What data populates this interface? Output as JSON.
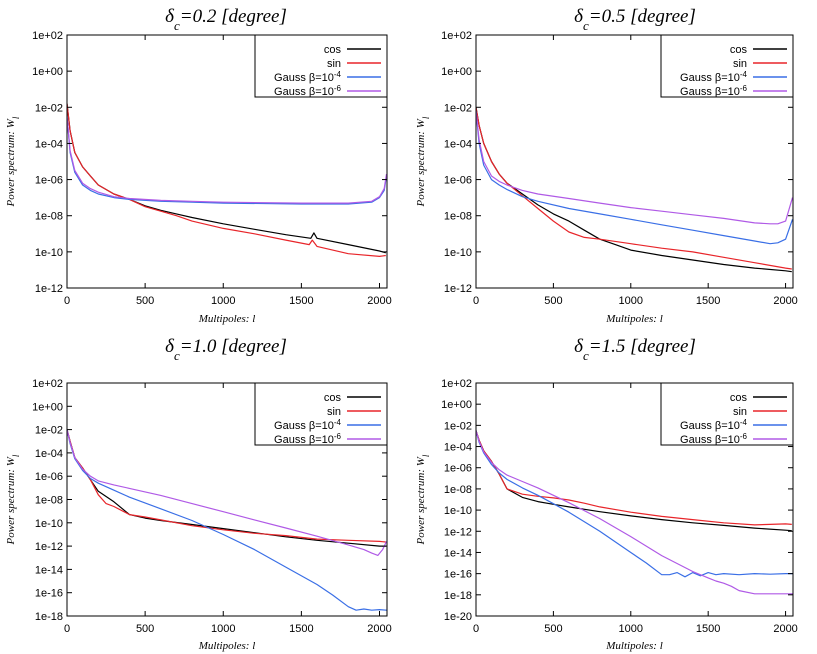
{
  "chart_data": [
    {
      "type": "line",
      "title_sym": "δ",
      "title_sub": "c",
      "title_rest": "=0.2 [degree]",
      "xlabel": "Multipoles: l",
      "ylabel": "Power spectrum: W",
      "ylabel_sub": "l",
      "xlim": [
        0,
        2048
      ],
      "ylim_exp": [
        -12,
        2
      ],
      "x_ticks": [
        "0",
        "500",
        "1000",
        "1500",
        "2000"
      ],
      "y_ticks": [
        "1e-12",
        "1e-10",
        "1e-08",
        "1e-06",
        "1e-04",
        "1e-02",
        "1e+00",
        "1e+02"
      ],
      "series": [
        {
          "name": "cos",
          "color": "#000000",
          "x": [
            0,
            20,
            50,
            100,
            150,
            200,
            300,
            400,
            500,
            600,
            700,
            800,
            1000,
            1200,
            1400,
            1560,
            1580,
            1600,
            1800,
            2000,
            2040
          ],
          "log10y": [
            -1.8,
            -3.3,
            -4.5,
            -5.3,
            -5.8,
            -6.3,
            -6.8,
            -7.1,
            -7.45,
            -7.7,
            -7.9,
            -8.1,
            -8.45,
            -8.75,
            -9.05,
            -9.25,
            -8.95,
            -9.25,
            -9.6,
            -9.95,
            -10.05
          ]
        },
        {
          "name": "sin",
          "color": "#e8252a",
          "x": [
            0,
            20,
            50,
            100,
            150,
            200,
            300,
            400,
            500,
            600,
            700,
            800,
            1000,
            1200,
            1400,
            1550,
            1570,
            1600,
            1800,
            2000,
            2040
          ],
          "log10y": [
            -1.8,
            -3.3,
            -4.5,
            -5.3,
            -5.8,
            -6.3,
            -6.8,
            -7.1,
            -7.5,
            -7.75,
            -8.0,
            -8.3,
            -8.7,
            -9.0,
            -9.35,
            -9.6,
            -9.35,
            -9.7,
            -10.1,
            -10.25,
            -10.2
          ]
        },
        {
          "name": "Gauss β=10",
          "sup": "-4",
          "color": "#3a6fe6",
          "x": [
            0,
            20,
            50,
            100,
            150,
            200,
            300,
            400,
            600,
            800,
            1000,
            1500,
            1800,
            1950,
            2000,
            2030,
            2045
          ],
          "log10y": [
            -2.5,
            -4.5,
            -5.6,
            -6.3,
            -6.6,
            -6.8,
            -7.0,
            -7.1,
            -7.2,
            -7.25,
            -7.3,
            -7.35,
            -7.35,
            -7.25,
            -7.0,
            -6.6,
            -5.8
          ]
        },
        {
          "name": "Gauss β=10",
          "sup": "-6",
          "color": "#b05ae6",
          "x": [
            0,
            20,
            50,
            100,
            150,
            200,
            300,
            400,
            600,
            800,
            1000,
            1500,
            1800,
            1950,
            2000,
            2030,
            2045
          ],
          "log10y": [
            -2.5,
            -4.4,
            -5.5,
            -6.2,
            -6.5,
            -6.7,
            -6.95,
            -7.05,
            -7.15,
            -7.2,
            -7.25,
            -7.3,
            -7.3,
            -7.2,
            -6.95,
            -6.5,
            -5.7
          ]
        }
      ]
    },
    {
      "type": "line",
      "title_sym": "δ",
      "title_sub": "c",
      "title_rest": "=0.5 [degree]",
      "xlabel": "Multipoles: l",
      "ylabel": "Power spectrum: W",
      "ylabel_sub": "l",
      "xlim": [
        0,
        2048
      ],
      "ylim_exp": [
        -12,
        2
      ],
      "x_ticks": [
        "0",
        "500",
        "1000",
        "1500",
        "2000"
      ],
      "y_ticks": [
        "1e-12",
        "1e-10",
        "1e-08",
        "1e-06",
        "1e-04",
        "1e-02",
        "1e+00",
        "1e+02"
      ],
      "series": [
        {
          "name": "cos",
          "color": "#000000",
          "x": [
            0,
            20,
            50,
            100,
            150,
            200,
            300,
            400,
            500,
            600,
            700,
            800,
            900,
            1000,
            1200,
            1400,
            1600,
            1800,
            2000,
            2040
          ],
          "log10y": [
            -2.0,
            -3.0,
            -4.0,
            -5.0,
            -5.7,
            -6.2,
            -6.8,
            -7.4,
            -7.9,
            -8.3,
            -8.8,
            -9.3,
            -9.6,
            -9.9,
            -10.2,
            -10.45,
            -10.7,
            -10.9,
            -11.05,
            -11.1
          ]
        },
        {
          "name": "sin",
          "color": "#e8252a",
          "x": [
            0,
            20,
            50,
            100,
            150,
            200,
            300,
            400,
            500,
            600,
            700,
            800,
            1000,
            1200,
            1400,
            1600,
            1800,
            2000,
            2040
          ],
          "log10y": [
            -2.0,
            -3.0,
            -4.0,
            -5.0,
            -5.7,
            -6.2,
            -6.9,
            -7.6,
            -8.3,
            -8.9,
            -9.2,
            -9.3,
            -9.55,
            -9.8,
            -10.0,
            -10.3,
            -10.6,
            -10.9,
            -10.95
          ]
        },
        {
          "name": "Gauss β=10",
          "sup": "-4",
          "color": "#3a6fe6",
          "x": [
            0,
            20,
            50,
            100,
            150,
            200,
            300,
            400,
            600,
            800,
            1000,
            1200,
            1400,
            1600,
            1800,
            1900,
            1950,
            2000,
            2045
          ],
          "log10y": [
            -2.2,
            -4.0,
            -5.2,
            -6.0,
            -6.3,
            -6.55,
            -6.95,
            -7.2,
            -7.6,
            -7.9,
            -8.2,
            -8.5,
            -8.8,
            -9.1,
            -9.4,
            -9.55,
            -9.5,
            -9.3,
            -8.2
          ]
        },
        {
          "name": "Gauss β=10",
          "sup": "-6",
          "color": "#b05ae6",
          "x": [
            0,
            20,
            50,
            100,
            150,
            200,
            300,
            400,
            600,
            800,
            1000,
            1200,
            1400,
            1600,
            1800,
            1900,
            1950,
            2000,
            2045
          ],
          "log10y": [
            -2.2,
            -3.8,
            -5.0,
            -5.8,
            -6.1,
            -6.3,
            -6.6,
            -6.8,
            -7.05,
            -7.3,
            -7.55,
            -7.75,
            -7.95,
            -8.15,
            -8.4,
            -8.45,
            -8.45,
            -8.3,
            -7.0
          ]
        }
      ]
    },
    {
      "type": "line",
      "title_sym": "δ",
      "title_sub": "c",
      "title_rest": "=1.0 [degree]",
      "xlabel": "Multipoles: l",
      "ylabel": "Power spectrum: W",
      "ylabel_sub": "l",
      "xlim": [
        0,
        2048
      ],
      "ylim_exp": [
        -18,
        2
      ],
      "x_ticks": [
        "0",
        "500",
        "1000",
        "1500",
        "2000"
      ],
      "y_ticks": [
        "1e-18",
        "1e-16",
        "1e-14",
        "1e-12",
        "1e-10",
        "1e-08",
        "1e-06",
        "1e-04",
        "1e-02",
        "1e+00",
        "1e+02"
      ],
      "series": [
        {
          "name": "cos",
          "color": "#000000",
          "x": [
            0,
            20,
            50,
            100,
            150,
            200,
            300,
            400,
            500,
            600,
            800,
            1000,
            1200,
            1400,
            1600,
            1800,
            2000,
            2040
          ],
          "log10y": [
            -2.0,
            -3.0,
            -4.4,
            -5.3,
            -6.3,
            -7.3,
            -8.2,
            -9.3,
            -9.6,
            -9.8,
            -10.15,
            -10.5,
            -10.85,
            -11.2,
            -11.5,
            -11.75,
            -12.0,
            -12.0
          ]
        },
        {
          "name": "sin",
          "color": "#e8252a",
          "x": [
            0,
            20,
            50,
            100,
            150,
            200,
            250,
            300,
            400,
            500,
            600,
            800,
            1000,
            1200,
            1400,
            1600,
            1800,
            2000,
            2040
          ],
          "log10y": [
            -2.0,
            -3.0,
            -4.4,
            -5.3,
            -6.3,
            -7.6,
            -8.35,
            -8.6,
            -9.3,
            -9.5,
            -9.75,
            -10.25,
            -10.6,
            -10.9,
            -11.1,
            -11.4,
            -11.5,
            -11.6,
            -11.65
          ]
        },
        {
          "name": "Gauss β=10",
          "sup": "-4",
          "color": "#3a6fe6",
          "x": [
            0,
            20,
            50,
            100,
            150,
            200,
            300,
            400,
            600,
            800,
            1000,
            1200,
            1400,
            1600,
            1700,
            1800,
            1850,
            1900,
            1950,
            2000,
            2045
          ],
          "log10y": [
            -2.0,
            -3.2,
            -4.5,
            -5.5,
            -6.2,
            -6.6,
            -7.2,
            -7.8,
            -8.8,
            -9.8,
            -11.0,
            -12.3,
            -13.8,
            -15.3,
            -16.2,
            -17.2,
            -17.5,
            -17.4,
            -17.5,
            -17.45,
            -17.5
          ]
        },
        {
          "name": "Gauss β=10",
          "sup": "-6",
          "color": "#b05ae6",
          "x": [
            0,
            20,
            50,
            100,
            150,
            200,
            300,
            400,
            600,
            800,
            1000,
            1200,
            1400,
            1600,
            1800,
            1900,
            1950,
            1990,
            2020,
            2045
          ],
          "log10y": [
            -2.0,
            -3.1,
            -4.4,
            -5.4,
            -6.0,
            -6.4,
            -6.75,
            -7.05,
            -7.65,
            -8.35,
            -9.05,
            -9.75,
            -10.45,
            -11.15,
            -11.9,
            -12.3,
            -12.6,
            -12.8,
            -12.3,
            -11.6
          ]
        }
      ]
    },
    {
      "type": "line",
      "title_sym": "δ",
      "title_sub": "c",
      "title_rest": "=1.5 [degree]",
      "xlabel": "Multipoles: l",
      "ylabel": "Power spectrum: W",
      "ylabel_sub": "l",
      "xlim": [
        0,
        2048
      ],
      "ylim_exp": [
        -20,
        2
      ],
      "x_ticks": [
        "0",
        "500",
        "1000",
        "1500",
        "2000"
      ],
      "y_ticks": [
        "1e-20",
        "1e-18",
        "1e-16",
        "1e-14",
        "1e-12",
        "1e-10",
        "1e-08",
        "1e-06",
        "1e-04",
        "1e-02",
        "1e+00",
        "1e+02"
      ],
      "series": [
        {
          "name": "cos",
          "color": "#000000",
          "x": [
            0,
            20,
            50,
            100,
            150,
            200,
            300,
            400,
            500,
            600,
            800,
            1000,
            1200,
            1400,
            1600,
            1800,
            2000,
            2040
          ],
          "log10y": [
            -2.5,
            -3.4,
            -4.4,
            -5.4,
            -6.6,
            -8.0,
            -8.8,
            -9.2,
            -9.45,
            -9.7,
            -10.15,
            -10.55,
            -10.9,
            -11.2,
            -11.45,
            -11.7,
            -11.9,
            -11.95
          ]
        },
        {
          "name": "sin",
          "color": "#e8252a",
          "x": [
            0,
            20,
            50,
            100,
            150,
            200,
            300,
            400,
            500,
            600,
            700,
            800,
            1000,
            1200,
            1400,
            1600,
            1800,
            2000,
            2040
          ],
          "log10y": [
            -2.5,
            -3.4,
            -4.4,
            -5.4,
            -6.6,
            -8.0,
            -8.5,
            -8.7,
            -8.85,
            -9.05,
            -9.35,
            -9.7,
            -10.2,
            -10.6,
            -10.9,
            -11.2,
            -11.4,
            -11.3,
            -11.35
          ]
        },
        {
          "name": "Gauss β=10",
          "sup": "-4",
          "color": "#3a6fe6",
          "x": [
            0,
            20,
            50,
            100,
            150,
            200,
            300,
            400,
            500,
            600,
            800,
            1000,
            1100,
            1200,
            1250,
            1300,
            1350,
            1400,
            1450,
            1500,
            1550,
            1600,
            1700,
            1800,
            1900,
            2000,
            2045
          ],
          "log10y": [
            -2.5,
            -3.6,
            -4.6,
            -5.7,
            -6.5,
            -7.1,
            -7.9,
            -8.6,
            -9.4,
            -10.2,
            -12.0,
            -14.0,
            -15.0,
            -16.1,
            -16.1,
            -15.9,
            -16.3,
            -15.9,
            -16.2,
            -15.9,
            -16.1,
            -16.0,
            -16.1,
            -16.0,
            -16.05,
            -16.0,
            -16.0
          ]
        },
        {
          "name": "Gauss β=10",
          "sup": "-6",
          "color": "#b05ae6",
          "x": [
            0,
            20,
            50,
            100,
            150,
            200,
            300,
            400,
            500,
            600,
            800,
            1000,
            1200,
            1400,
            1500,
            1550,
            1600,
            1650,
            1700,
            1800,
            1900,
            2000,
            2045
          ],
          "log10y": [
            -2.5,
            -3.5,
            -4.5,
            -5.5,
            -6.2,
            -6.7,
            -7.3,
            -7.9,
            -8.6,
            -9.3,
            -10.8,
            -12.5,
            -14.3,
            -15.8,
            -16.4,
            -16.7,
            -16.9,
            -17.2,
            -17.6,
            -17.9,
            -17.9,
            -17.9,
            -17.9
          ]
        }
      ]
    }
  ]
}
